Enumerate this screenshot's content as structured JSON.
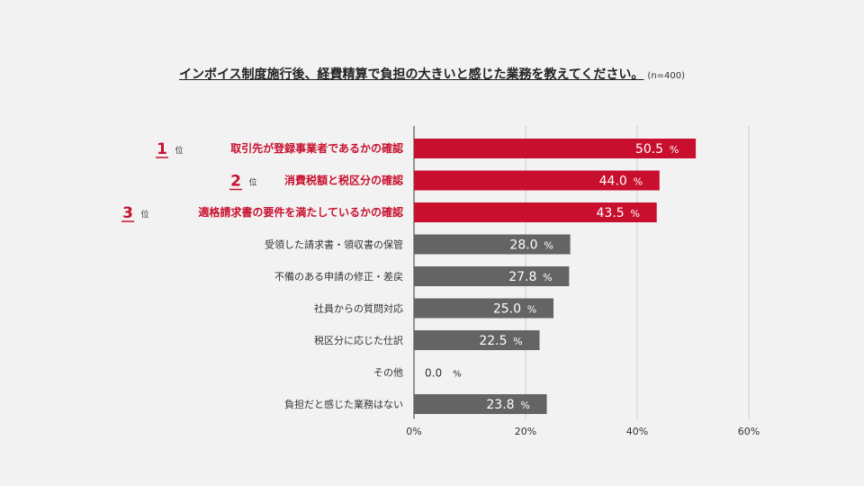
{
  "chart_data": {
    "type": "bar",
    "orientation": "horizontal",
    "title": "インボイス制度施行後、経費精算で負担の大きいと感じた業務を教えてください。",
    "sample_note": "(n=400)",
    "rank_suffix": "位",
    "value_unit": "%",
    "categories": [
      "取引先が登録事業者であるかの確認",
      "消費税額と税区分の確認",
      "適格請求書の要件を満たしているかの確認",
      "受領した請求書・領収書の保管",
      "不備のある申請の修正・差戻",
      "社員からの質問対応",
      "税区分に応じた仕訳",
      "その他",
      "負担だと感じた業務はない"
    ],
    "values": [
      50.5,
      44.0,
      43.5,
      28.0,
      27.8,
      25.0,
      22.5,
      0.0,
      23.8
    ],
    "value_labels": [
      "50.5",
      "44.0",
      "43.5",
      "28.0",
      "27.8",
      "25.0",
      "22.5",
      "0.0",
      "23.8"
    ],
    "ranks": [
      "1",
      "2",
      "3",
      "",
      "",
      "",
      "",
      "",
      ""
    ],
    "xlim": [
      0,
      60
    ],
    "xticks": [
      0,
      20,
      40,
      60
    ],
    "xtick_labels": [
      "0%",
      "20%",
      "40%",
      "60%"
    ],
    "grid": true,
    "colors": {
      "top": "#c8102e",
      "other": "#646464",
      "grid": "#cccccc",
      "axis": "#555555"
    }
  }
}
